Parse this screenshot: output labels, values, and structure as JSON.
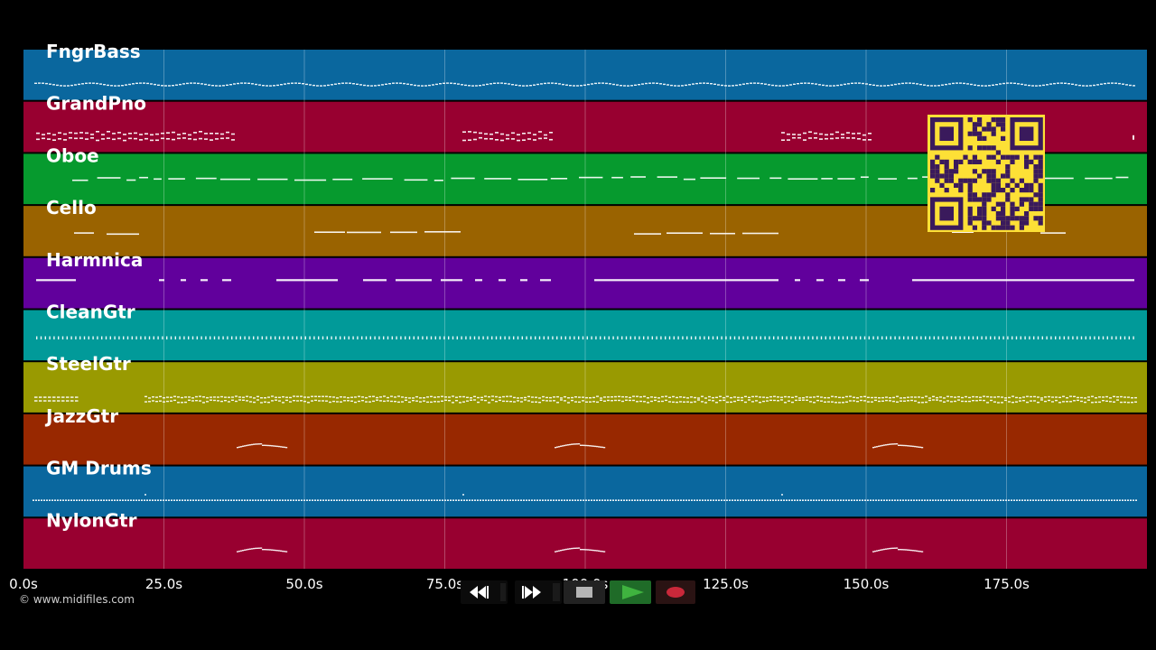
{
  "app": {
    "background": "#000000",
    "credit": "© www.midifiles.com"
  },
  "timeline": {
    "max_seconds": 200,
    "ticks": [
      "0.0s",
      "25.0s",
      "50.0s",
      "75.0s",
      "100.0s",
      "125.0s",
      "150.0s",
      "175.0s"
    ],
    "tick_values": [
      0,
      25,
      50,
      75,
      100,
      125,
      150,
      175
    ]
  },
  "tracks": [
    {
      "name": "FngrBass",
      "color": "#0a679e",
      "pattern": "wave"
    },
    {
      "name": "GrandPno",
      "color": "#980030",
      "pattern": "chords"
    },
    {
      "name": "Oboe",
      "color": "#069a2e",
      "pattern": "melody"
    },
    {
      "name": "Cello",
      "color": "#9a6300",
      "pattern": "sparse"
    },
    {
      "name": "Harmnica",
      "color": "#61009c",
      "pattern": "dashes"
    },
    {
      "name": "CleanGtr",
      "color": "#019a99",
      "pattern": "ticks"
    },
    {
      "name": "SteelGtr",
      "color": "#999a01",
      "pattern": "dense"
    },
    {
      "name": "JazzGtr",
      "color": "#982800",
      "pattern": "bumps"
    },
    {
      "name": "GM Drums",
      "color": "#0a679e",
      "pattern": "drums"
    },
    {
      "name": "NylonGtr",
      "color": "#980030",
      "pattern": "bumps"
    }
  ],
  "qr": {
    "icon": "qr-code-icon",
    "fg": "#3a1a5c",
    "bg": "#fde036"
  },
  "transport": {
    "rewind": {
      "icon": "rewind-icon",
      "color": "#ffffff"
    },
    "fast_forward": {
      "icon": "fast-forward-icon",
      "color": "#ffffff"
    },
    "stop": {
      "icon": "stop-icon",
      "color": "#b5b5b5"
    },
    "play": {
      "icon": "play-icon",
      "color": "#3fb33f"
    },
    "record": {
      "icon": "record-icon",
      "color": "#c9283a"
    }
  }
}
